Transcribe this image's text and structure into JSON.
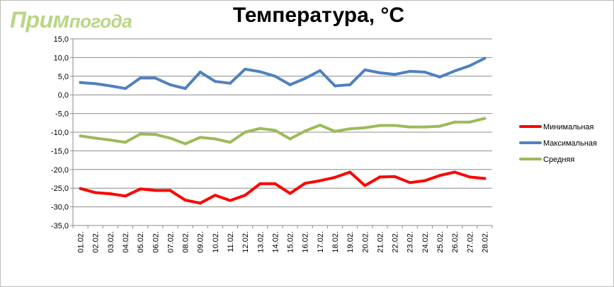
{
  "logo": {
    "part1": "Прим",
    "part2": "погода"
  },
  "chart_data": {
    "type": "line",
    "title": "Температура, °C",
    "xlabel": "",
    "ylabel": "",
    "ylim": [
      -35,
      15
    ],
    "ytick_step": 5,
    "ytick_labels": [
      "15,0",
      "10,0",
      "5,0",
      "0,0",
      "-5,0",
      "-10,0",
      "-15,0",
      "-20,0",
      "-25,0",
      "-30,0",
      "-35,0"
    ],
    "grid": true,
    "legend_position": "right",
    "categories": [
      "01.02.",
      "02.02.",
      "03.02.",
      "04.02.",
      "05.02.",
      "06.02.",
      "07.02.",
      "08.02.",
      "09.02.",
      "10.02.",
      "11.02.",
      "12.02.",
      "13.02.",
      "14.02.",
      "15.02.",
      "16.02.",
      "17.02.",
      "18.02.",
      "19.02.",
      "20.02.",
      "21.02.",
      "22.02.",
      "23.02.",
      "24.02.",
      "25.02.",
      "26.02.",
      "27.02.",
      "28.02."
    ],
    "series": [
      {
        "name": "Минимальная",
        "color": "#ff0000",
        "values": [
          -25.1,
          -26.2,
          -26.5,
          -27.1,
          -25.2,
          -25.6,
          -25.6,
          -28.2,
          -29.0,
          -26.9,
          -28.3,
          -26.9,
          -23.8,
          -23.8,
          -26.4,
          -23.7,
          -23.0,
          -22.1,
          -20.7,
          -24.3,
          -22.0,
          -21.9,
          -23.5,
          -23.0,
          -21.6,
          -20.7,
          -22.0,
          -22.4
        ]
      },
      {
        "name": "Максимальная",
        "color": "#4f81bd",
        "values": [
          3.3,
          3.0,
          2.4,
          1.7,
          4.5,
          4.5,
          2.7,
          1.7,
          6.1,
          3.6,
          3.1,
          6.9,
          6.2,
          5.0,
          2.7,
          4.4,
          6.5,
          2.4,
          2.7,
          6.7,
          5.9,
          5.5,
          6.3,
          6.1,
          4.8,
          6.4,
          7.8,
          9.8
        ]
      },
      {
        "name": "Средняя",
        "color": "#9bbb59",
        "values": [
          -11.0,
          -11.6,
          -12.1,
          -12.7,
          -10.5,
          -10.6,
          -11.6,
          -13.1,
          -11.4,
          -11.8,
          -12.7,
          -10.0,
          -9.0,
          -9.5,
          -11.8,
          -9.7,
          -8.1,
          -9.8,
          -9.1,
          -8.8,
          -8.2,
          -8.2,
          -8.6,
          -8.6,
          -8.4,
          -7.3,
          -7.3,
          -6.3
        ]
      }
    ]
  }
}
